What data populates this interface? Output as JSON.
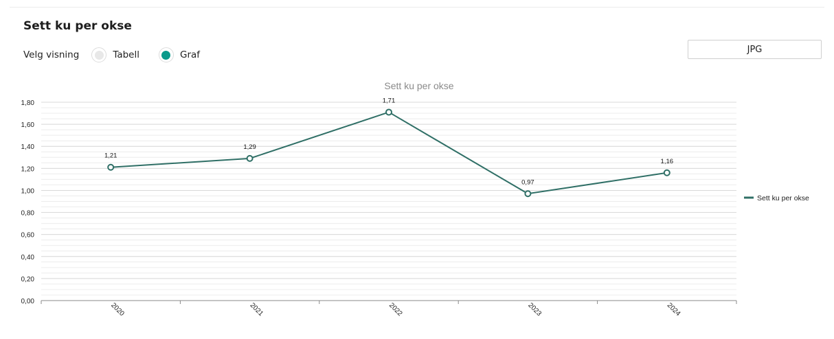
{
  "page": {
    "title": "Sett ku per okse",
    "view_label": "Velg visning",
    "options": [
      {
        "label": "Tabell",
        "selected": false
      },
      {
        "label": "Graf",
        "selected": true
      }
    ],
    "export_label": "JPG"
  },
  "colors": {
    "series": "#2f6f66",
    "radio_selected": "#0a9a8b",
    "grid": "#ececec"
  },
  "chart_data": {
    "type": "line",
    "title": "Sett ku per okse",
    "categories": [
      "2020",
      "2021",
      "2022",
      "2023",
      "2024"
    ],
    "series": [
      {
        "name": "Sett ku per okse",
        "values": [
          1.21,
          1.29,
          1.71,
          0.97,
          1.16
        ]
      }
    ],
    "value_labels": [
      "1,21",
      "1,29",
      "1,71",
      "0,97",
      "1,16"
    ],
    "y_ticks": [
      "0,00",
      "0,20",
      "0,40",
      "0,60",
      "0,80",
      "1,00",
      "1,20",
      "1,40",
      "1,60",
      "1,80"
    ],
    "ylim": [
      0,
      1.8
    ],
    "grid": true,
    "legend": "right"
  }
}
